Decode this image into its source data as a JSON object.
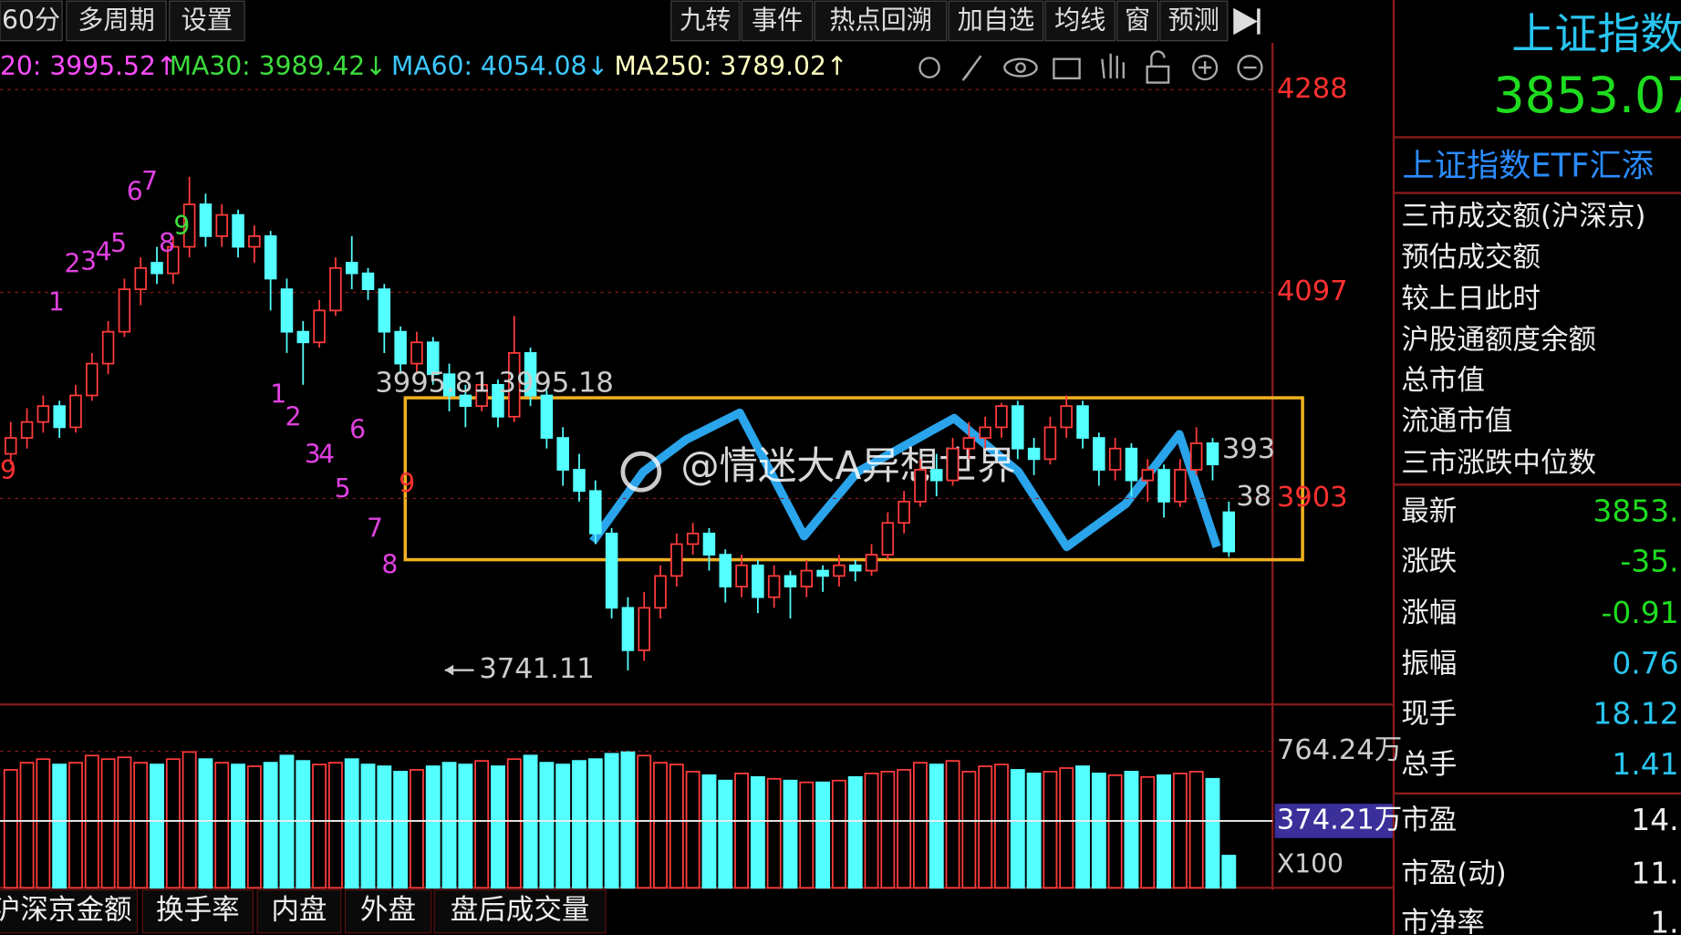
{
  "toolbar": {
    "left": [
      "60分",
      "多周期",
      "设置"
    ],
    "right": [
      "九转",
      "事件",
      "热点回溯",
      "加自选",
      "均线",
      "窗",
      "预测"
    ]
  },
  "ma_legend": [
    "20: 3995.52↑",
    "MA30: 3989.42↓",
    "MA60: 4054.08↓",
    "MA250: 3789.02↑"
  ],
  "chart_data": {
    "type": "candlestick",
    "up_color": "#ff3b3b",
    "down_color": "#54ffff",
    "ohlc": [
      [
        3945,
        3975,
        3935,
        3960
      ],
      [
        3960,
        3988,
        3950,
        3975
      ],
      [
        3975,
        4000,
        3965,
        3990
      ],
      [
        3990,
        3995,
        3960,
        3970
      ],
      [
        3970,
        4010,
        3965,
        4000
      ],
      [
        4000,
        4040,
        3995,
        4030
      ],
      [
        4030,
        4070,
        4020,
        4060
      ],
      [
        4060,
        4110,
        4055,
        4100
      ],
      [
        4100,
        4130,
        4085,
        4120
      ],
      [
        4125,
        4140,
        4105,
        4115
      ],
      [
        4115,
        4150,
        4105,
        4140
      ],
      [
        4140,
        4206,
        4130,
        4180
      ],
      [
        4180,
        4190,
        4140,
        4150
      ],
      [
        4150,
        4180,
        4140,
        4170
      ],
      [
        4170,
        4175,
        4130,
        4140
      ],
      [
        4140,
        4160,
        4125,
        4150
      ],
      [
        4150,
        4155,
        4080,
        4110
      ],
      [
        4100,
        4110,
        4040,
        4060
      ],
      [
        4060,
        4070,
        4010,
        4050
      ],
      [
        4050,
        4090,
        4045,
        4080
      ],
      [
        4080,
        4130,
        4075,
        4120
      ],
      [
        4125,
        4150,
        4100,
        4115
      ],
      [
        4115,
        4120,
        4090,
        4100
      ],
      [
        4100,
        4105,
        4040,
        4060
      ],
      [
        4060,
        4065,
        4020,
        4030
      ],
      [
        4030,
        4060,
        4020,
        4050
      ],
      [
        4050,
        4055,
        4010,
        4020
      ],
      [
        4020,
        4030,
        3985,
        4000
      ],
      [
        4000,
        4010,
        3970,
        3990
      ],
      [
        3990,
        4020,
        3985,
        4010
      ],
      [
        4010,
        4015,
        3970,
        3980
      ],
      [
        3980,
        4075,
        3975,
        4040
      ],
      [
        4040,
        4045,
        3990,
        4000
      ],
      [
        4000,
        4005,
        3950,
        3960
      ],
      [
        3960,
        3970,
        3915,
        3930
      ],
      [
        3930,
        3945,
        3900,
        3910
      ],
      [
        3910,
        3920,
        3860,
        3870
      ],
      [
        3870,
        3875,
        3790,
        3800
      ],
      [
        3800,
        3810,
        3741.11,
        3760
      ],
      [
        3760,
        3815,
        3750,
        3800
      ],
      [
        3800,
        3840,
        3790,
        3830
      ],
      [
        3830,
        3870,
        3820,
        3860
      ],
      [
        3860,
        3880,
        3850,
        3870
      ],
      [
        3870,
        3875,
        3835,
        3850
      ],
      [
        3850,
        3855,
        3805,
        3820
      ],
      [
        3820,
        3850,
        3810,
        3840
      ],
      [
        3840,
        3845,
        3795,
        3810
      ],
      [
        3810,
        3840,
        3800,
        3830
      ],
      [
        3830,
        3835,
        3790,
        3820
      ],
      [
        3820,
        3845,
        3810,
        3835
      ],
      [
        3835,
        3840,
        3815,
        3830
      ],
      [
        3830,
        3850,
        3820,
        3840
      ],
      [
        3840,
        3845,
        3825,
        3835
      ],
      [
        3835,
        3860,
        3830,
        3850
      ],
      [
        3850,
        3890,
        3845,
        3880
      ],
      [
        3880,
        3910,
        3870,
        3900
      ],
      [
        3900,
        3940,
        3895,
        3930
      ],
      [
        3930,
        3945,
        3905,
        3920
      ],
      [
        3920,
        3960,
        3915,
        3950
      ],
      [
        3950,
        3975,
        3940,
        3960
      ],
      [
        3960,
        3980,
        3950,
        3970
      ],
      [
        3970,
        3993,
        3960,
        3990
      ],
      [
        3990,
        3995,
        3940,
        3950
      ],
      [
        3950,
        3960,
        3925,
        3940
      ],
      [
        3940,
        3980,
        3935,
        3970
      ],
      [
        3970,
        4000,
        3960,
        3990
      ],
      [
        3990,
        3995,
        3950,
        3960
      ],
      [
        3960,
        3965,
        3915,
        3930
      ],
      [
        3930,
        3960,
        3920,
        3950
      ],
      [
        3950,
        3955,
        3905,
        3920
      ],
      [
        3920,
        3940,
        3900,
        3930
      ],
      [
        3930,
        3935,
        3885,
        3900
      ],
      [
        3900,
        3940,
        3895,
        3930
      ],
      [
        3930,
        3970,
        3925,
        3955
      ],
      [
        3955,
        3960,
        3920,
        3935
      ],
      [
        3890,
        3900,
        3848,
        3853.07
      ]
    ],
    "ylim": [
      3711,
      4332
    ],
    "yticks": [
      4288,
      4097,
      3903
    ],
    "grid": true,
    "annotations": [
      "3995.81",
      "3995.18",
      "3741.11",
      "393",
      "38"
    ],
    "td_labels": [
      "1",
      "2",
      "3",
      "4",
      "5",
      "6",
      "7",
      "8",
      "9",
      "1",
      "2",
      "3",
      "4",
      "5",
      "6",
      "7",
      "8",
      "9",
      "9"
    ],
    "volume": {
      "values": [
        660,
        700,
        720,
        690,
        700,
        740,
        720,
        730,
        700,
        690,
        720,
        760,
        720,
        700,
        690,
        680,
        700,
        740,
        710,
        690,
        700,
        720,
        690,
        680,
        650,
        660,
        680,
        700,
        690,
        710,
        680,
        720,
        740,
        700,
        690,
        710,
        720,
        750,
        760,
        740,
        700,
        690,
        650,
        630,
        600,
        640,
        620,
        610,
        600,
        590,
        590,
        600,
        620,
        640,
        650,
        660,
        700,
        690,
        710,
        650,
        680,
        690,
        660,
        640,
        650,
        670,
        680,
        640,
        630,
        650,
        620,
        630,
        640,
        650,
        610,
        180
      ],
      "ylim": [
        0,
        978
      ],
      "yticks": [
        {
          "value": 764.24,
          "label": "764.24万"
        },
        {
          "value": 374.21,
          "label": "374.21万"
        }
      ],
      "unit_label": "X100"
    }
  },
  "bottom_tabs": [
    "沪深京金额",
    "换手率",
    "内盘",
    "外盘",
    "盘后成交量"
  ],
  "watermark": "@情迷大A异想世界",
  "quote": {
    "name": "上证指数",
    "price": "3853.07",
    "etf": "上证指数ETF汇添"
  },
  "info_rows": [
    "三市成交额(沪深京)",
    "预估成交额",
    "较上日此时",
    "沪股通额度余额",
    "总市值",
    "流通市值",
    "三市涨跌中位数"
  ],
  "stats": [
    [
      "最新",
      "3853."
    ],
    [
      "涨跌",
      "-35."
    ],
    [
      "涨幅",
      "-0.91"
    ],
    [
      "振幅",
      "0.76"
    ],
    [
      "现手",
      "18.12"
    ],
    [
      "总手",
      "1.41"
    ],
    [
      "市盈",
      "14."
    ],
    [
      "市盈(动)",
      "11."
    ],
    [
      "市净率",
      "1."
    ]
  ]
}
